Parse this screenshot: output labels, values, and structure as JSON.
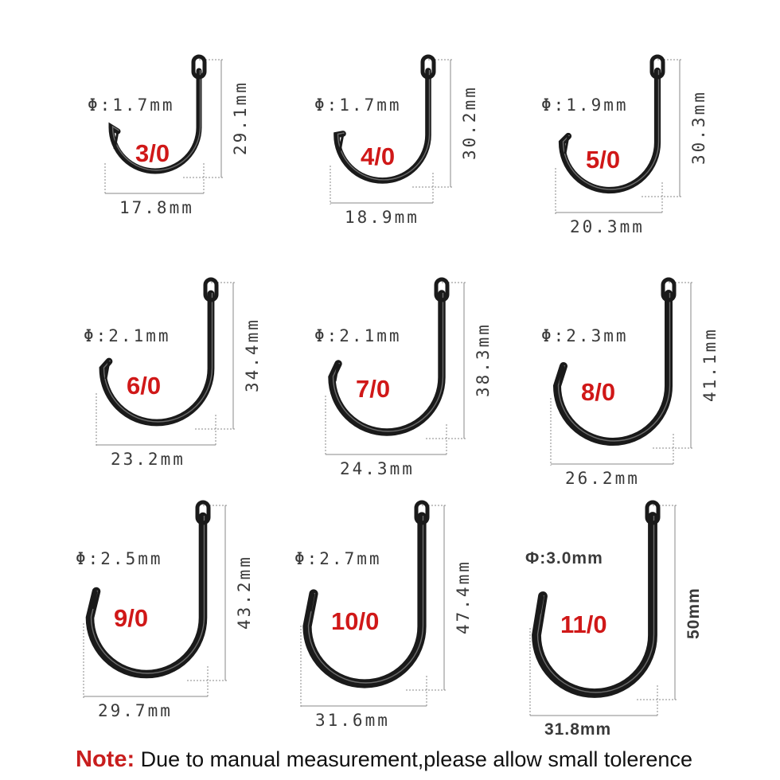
{
  "hooks": [
    {
      "size": "3/0",
      "diameter": "Φ:1.7mm",
      "length": "29.1mm",
      "width": "17.8mm"
    },
    {
      "size": "4/0",
      "diameter": "Φ:1.7mm",
      "length": "30.2mm",
      "width": "18.9mm"
    },
    {
      "size": "5/0",
      "diameter": "Φ:1.9mm",
      "length": "30.3mm",
      "width": "20.3mm"
    },
    {
      "size": "6/0",
      "diameter": "Φ:2.1mm",
      "length": "34.4mm",
      "width": "23.2mm"
    },
    {
      "size": "7/0",
      "diameter": "Φ:2.1mm",
      "length": "38.3mm",
      "width": "24.3mm"
    },
    {
      "size": "8/0",
      "diameter": "Φ:2.3mm",
      "length": "41.1mm",
      "width": "26.2mm"
    },
    {
      "size": "9/0",
      "diameter": "Φ:2.5mm",
      "length": "43.2mm",
      "width": "29.7mm"
    },
    {
      "size": "10/0",
      "diameter": "Φ:2.7mm",
      "length": "47.4mm",
      "width": "31.6mm"
    },
    {
      "size": "11/0",
      "diameter": "Φ:3.0mm",
      "length": "50mm",
      "width": "31.8mm"
    }
  ],
  "note": {
    "lead": "Note:",
    "text": " Due to manual measurement,please allow small tolerence"
  },
  "colors": {
    "size_label": "#d01818",
    "hook": "#1a1a1a",
    "dimension_line": "#888888"
  }
}
